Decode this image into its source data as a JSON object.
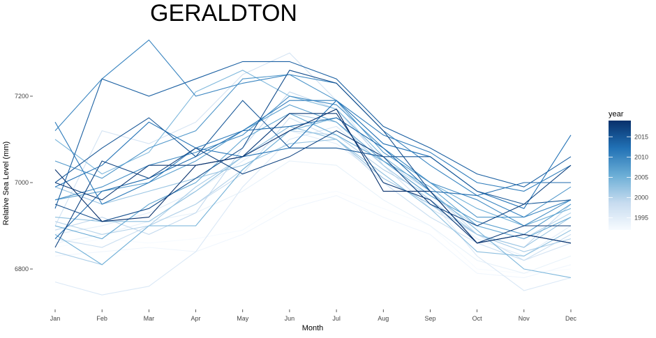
{
  "chart_data": {
    "type": "line",
    "title": "GERALDTON",
    "xlabel": "Month",
    "ylabel": "Relative Sea Level (mm)",
    "categories": [
      "Jan",
      "Feb",
      "Mar",
      "Apr",
      "May",
      "Jun",
      "Jul",
      "Aug",
      "Sep",
      "Oct",
      "Nov",
      "Dec"
    ],
    "yticks": [
      6800,
      7000,
      7200
    ],
    "ylim": [
      6710,
      7345
    ],
    "grid": false,
    "legend": {
      "title": "year",
      "position": "right",
      "ticks": [
        1995,
        2000,
        2005,
        2010,
        2015
      ],
      "range": [
        1992,
        2019
      ],
      "low_color": "#f7fbff",
      "high_color": "#08306b"
    },
    "series": [
      {
        "year": 1992,
        "values": [
          6850,
          6870,
          6860,
          6870,
          6890,
          6960,
          6980,
          6940,
          6900,
          6800,
          6790,
          6800
        ]
      },
      {
        "year": 1993,
        "values": [
          6830,
          6840,
          6850,
          6840,
          6880,
          6940,
          6970,
          6920,
          6880,
          6790,
          6780,
          6810
        ]
      },
      {
        "year": 1994,
        "values": [
          6860,
          6880,
          6910,
          6930,
          6980,
          7050,
          7040,
          6960,
          6900,
          6820,
          6790,
          6830
        ]
      },
      {
        "year": 1995,
        "values": [
          6880,
          6900,
          6930,
          6980,
          7050,
          7120,
          7090,
          7010,
          6950,
          6870,
          6830,
          6900
        ]
      },
      {
        "year": 1996,
        "values": [
          6770,
          6740,
          6760,
          6840,
          6990,
          7100,
          7130,
          7040,
          6960,
          6830,
          6750,
          6780
        ]
      },
      {
        "year": 1997,
        "values": [
          6900,
          7120,
          7090,
          7140,
          7250,
          7300,
          7190,
          7040,
          6940,
          6880,
          6820,
          6860
        ]
      },
      {
        "year": 1998,
        "values": [
          6870,
          6850,
          6900,
          6950,
          7020,
          7150,
          7100,
          7000,
          6920,
          6860,
          6820,
          6880
        ]
      },
      {
        "year": 1999,
        "values": [
          6890,
          6920,
          6880,
          6930,
          7080,
          7210,
          7170,
          7050,
          6980,
          6880,
          6850,
          6950
        ]
      },
      {
        "year": 2000,
        "values": [
          6910,
          6880,
          6900,
          6950,
          7030,
          7120,
          7110,
          7030,
          6970,
          6900,
          6870,
          6930
        ]
      },
      {
        "year": 2001,
        "values": [
          6840,
          6810,
          6900,
          6990,
          7060,
          7160,
          7140,
          7040,
          6960,
          6880,
          6840,
          6870
        ]
      },
      {
        "year": 2002,
        "values": [
          6990,
          6950,
          6980,
          7010,
          7040,
          7090,
          7100,
          7010,
          6950,
          6880,
          6850,
          6920
        ]
      },
      {
        "year": 2003,
        "values": [
          6920,
          6910,
          6910,
          6980,
          7060,
          7130,
          7100,
          7020,
          6940,
          6840,
          6830,
          6890
        ]
      },
      {
        "year": 2004,
        "values": [
          7100,
          7020,
          7070,
          7210,
          7260,
          7200,
          7170,
          7060,
          6980,
          6890,
          6800,
          6780
        ]
      },
      {
        "year": 2005,
        "values": [
          6880,
          6810,
          6900,
          6900,
          7030,
          7120,
          7150,
          7080,
          7000,
          6940,
          6900,
          6940
        ]
      },
      {
        "year": 2006,
        "values": [
          6900,
          6870,
          6950,
          7000,
          7100,
          7160,
          7110,
          7050,
          6990,
          6900,
          6870,
          6920
        ]
      },
      {
        "year": 2007,
        "values": [
          6960,
          6980,
          7000,
          7050,
          7120,
          7180,
          7140,
          7050,
          6970,
          6910,
          6880,
          6950
        ]
      },
      {
        "year": 2008,
        "values": [
          7050,
          7010,
          7080,
          7120,
          7240,
          7250,
          7190,
          7070,
          7000,
          6920,
          6920,
          6990
        ]
      },
      {
        "year": 2009,
        "values": [
          6960,
          6990,
          7040,
          7070,
          7110,
          7200,
          7180,
          7080,
          7000,
          6960,
          6900,
          6960
        ]
      },
      {
        "year": 2010,
        "values": [
          7120,
          7240,
          7330,
          7200,
          7230,
          7250,
          7230,
          7120,
          7040,
          6970,
          6920,
          6960
        ]
      },
      {
        "year": 2011,
        "values": [
          7140,
          6950,
          7000,
          7080,
          7120,
          7190,
          7190,
          7110,
          7070,
          7000,
          6980,
          7040
        ]
      },
      {
        "year": 2012,
        "values": [
          6990,
          7040,
          7140,
          7080,
          7060,
          7080,
          7190,
          7090,
          7060,
          6980,
          6940,
          7110
        ]
      },
      {
        "year": 2013,
        "values": [
          6870,
          6980,
          7010,
          7060,
          7120,
          7130,
          7150,
          7080,
          6980,
          6970,
          7000,
          7000
        ]
      },
      {
        "year": 2014,
        "values": [
          6940,
          7240,
          7200,
          7240,
          7280,
          7280,
          7240,
          7130,
          7080,
          7020,
          6990,
          7060
        ]
      },
      {
        "year": 2015,
        "values": [
          7000,
          7080,
          7150,
          7060,
          7190,
          7080,
          7080,
          7060,
          7060,
          6980,
          6950,
          6960
        ]
      },
      {
        "year": 2016,
        "values": [
          6950,
          6910,
          6940,
          7010,
          7080,
          7260,
          7230,
          7120,
          6980,
          6860,
          6880,
          6860
        ]
      },
      {
        "year": 2017,
        "values": [
          6850,
          7050,
          7010,
          7080,
          7020,
          7060,
          7120,
          7060,
          6950,
          6900,
          6950,
          7040
        ]
      },
      {
        "year": 2018,
        "values": [
          7000,
          6960,
          7040,
          7040,
          7060,
          7160,
          7160,
          7000,
          6960,
          6860,
          6900,
          6900
        ]
      },
      {
        "year": 2019,
        "values": [
          7030,
          6910,
          6920,
          7040,
          7060,
          7120,
          7170,
          6980,
          6980,
          6860,
          6880,
          6860
        ]
      }
    ]
  }
}
